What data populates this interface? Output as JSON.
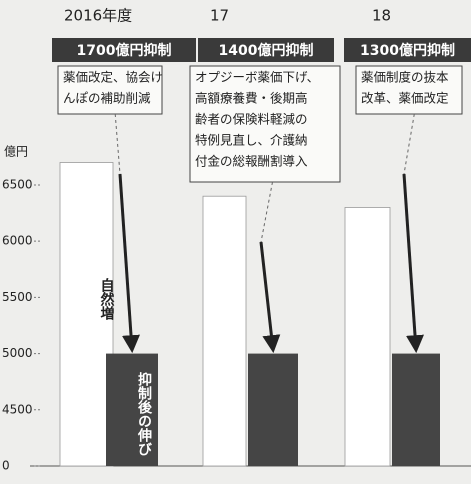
{
  "chart_data": {
    "type": "bar",
    "unit_label": "億円",
    "categories": [
      "2016年度",
      "17",
      "18"
    ],
    "headers": [
      "1700億円抑制",
      "1400億円抑制",
      "1300億円抑制"
    ],
    "notes": [
      [
        "薬価改定、協会け",
        "んぽの補助削減"
      ],
      [
        "オプジーボ薬価下げ、",
        "高額療養費・後期高",
        "齢者の保険料軽減の",
        "特例見直し、介護納",
        "付金の総報酬割導入"
      ],
      [
        "薬価制度の抜本",
        "改革、薬価改定"
      ]
    ],
    "series": [
      {
        "name": "自然増",
        "color": "#ffffff",
        "values": [
          6700,
          6400,
          6300
        ]
      },
      {
        "name": "抑制後の伸び",
        "color": "#454545",
        "values": [
          5000,
          5000,
          5000
        ]
      }
    ],
    "ylim": [
      4000,
      6900
    ],
    "yticks": [
      0,
      4500,
      5000,
      5500,
      6000,
      6500
    ],
    "axis_break": true
  }
}
